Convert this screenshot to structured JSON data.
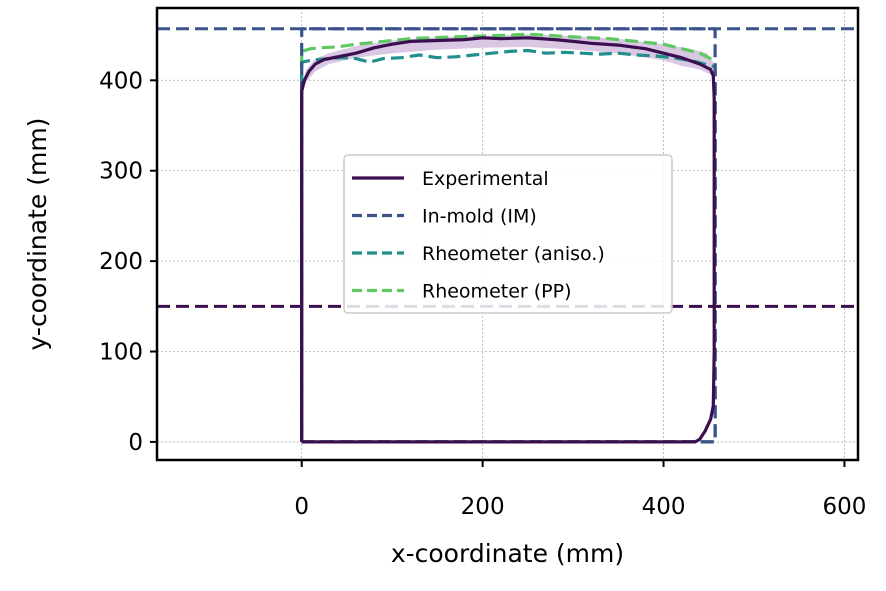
{
  "chart_data": {
    "type": "line",
    "xlabel": "x-coordinate (mm)",
    "ylabel": "y-coordinate (mm)",
    "xlim": [
      -160,
      615
    ],
    "ylim": [
      -20,
      480
    ],
    "xticks": [
      0,
      200,
      400,
      600
    ],
    "yticks": [
      0,
      100,
      200,
      300,
      400
    ],
    "xtick_labels": [
      "0",
      "200",
      "400",
      "600"
    ],
    "ytick_labels": [
      "0",
      "100",
      "200",
      "300",
      "400"
    ],
    "grid": true,
    "legend_position": "center",
    "reference_lines": [
      {
        "orientation": "horizontal",
        "y": 457,
        "color": "#3b528b",
        "style": "dashed"
      },
      {
        "orientation": "horizontal",
        "y": 150,
        "color": "#3b0f4f",
        "style": "dashed"
      }
    ],
    "band": {
      "series": "Experimental",
      "color": "#d5c1e0",
      "upper": [
        [
          0,
          395
        ],
        [
          5,
          412
        ],
        [
          15,
          424
        ],
        [
          30,
          430
        ],
        [
          60,
          438
        ],
        [
          100,
          444
        ],
        [
          150,
          448
        ],
        [
          200,
          449
        ],
        [
          250,
          451
        ],
        [
          300,
          449
        ],
        [
          350,
          446
        ],
        [
          400,
          440
        ],
        [
          430,
          435
        ],
        [
          448,
          430
        ],
        [
          455,
          420
        ]
      ],
      "lower": [
        [
          455,
          405
        ],
        [
          440,
          412
        ],
        [
          420,
          416
        ],
        [
          400,
          422
        ],
        [
          350,
          430
        ],
        [
          300,
          434
        ],
        [
          250,
          437
        ],
        [
          200,
          436
        ],
        [
          150,
          434
        ],
        [
          100,
          430
        ],
        [
          60,
          425
        ],
        [
          30,
          418
        ],
        [
          15,
          410
        ],
        [
          5,
          398
        ],
        [
          0,
          385
        ]
      ]
    },
    "series": [
      {
        "name": "Experimental",
        "color": "#3b0f4f",
        "style": "solid",
        "points": [
          [
            0,
            0
          ],
          [
            435,
            0
          ],
          [
            440,
            3
          ],
          [
            446,
            12
          ],
          [
            452,
            25
          ],
          [
            455,
            40
          ],
          [
            456,
            100
          ],
          [
            456,
            380
          ],
          [
            455,
            405
          ],
          [
            452,
            412
          ],
          [
            440,
            418
          ],
          [
            420,
            425
          ],
          [
            400,
            430
          ],
          [
            380,
            435
          ],
          [
            350,
            439
          ],
          [
            320,
            441
          ],
          [
            300,
            443
          ],
          [
            280,
            445
          ],
          [
            250,
            447
          ],
          [
            220,
            446
          ],
          [
            200,
            447
          ],
          [
            180,
            445
          ],
          [
            150,
            444
          ],
          [
            120,
            443
          ],
          [
            100,
            440
          ],
          [
            80,
            436
          ],
          [
            60,
            430
          ],
          [
            40,
            426
          ],
          [
            25,
            423
          ],
          [
            15,
            418
          ],
          [
            8,
            410
          ],
          [
            3,
            400
          ],
          [
            0,
            388
          ],
          [
            0,
            0
          ]
        ]
      },
      {
        "name": "In-mold (IM)",
        "color": "#3b528b",
        "style": "dashed",
        "points": [
          [
            0,
            0
          ],
          [
            457,
            0
          ],
          [
            457,
            457
          ],
          [
            0,
            457
          ],
          [
            0,
            0
          ]
        ]
      },
      {
        "name": "Rheometer (aniso.)",
        "color": "#21908c",
        "style": "dashed",
        "points": [
          [
            0,
            0
          ],
          [
            457,
            0
          ],
          [
            457,
            415
          ],
          [
            445,
            418
          ],
          [
            430,
            422
          ],
          [
            410,
            425
          ],
          [
            390,
            427
          ],
          [
            370,
            428
          ],
          [
            350,
            430
          ],
          [
            330,
            429
          ],
          [
            310,
            430
          ],
          [
            290,
            431
          ],
          [
            270,
            430
          ],
          [
            250,
            433
          ],
          [
            230,
            432
          ],
          [
            210,
            430
          ],
          [
            190,
            428
          ],
          [
            170,
            426
          ],
          [
            150,
            425
          ],
          [
            130,
            428
          ],
          [
            110,
            425
          ],
          [
            90,
            424
          ],
          [
            75,
            420
          ],
          [
            60,
            424
          ],
          [
            45,
            425
          ],
          [
            30,
            424
          ],
          [
            20,
            423
          ],
          [
            10,
            422
          ],
          [
            0,
            420
          ],
          [
            0,
            0
          ]
        ]
      },
      {
        "name": "Rheometer (PP)",
        "color": "#5ec962",
        "style": "dashed",
        "points": [
          [
            0,
            0
          ],
          [
            457,
            0
          ],
          [
            457,
            420
          ],
          [
            450,
            425
          ],
          [
            440,
            430
          ],
          [
            420,
            435
          ],
          [
            400,
            440
          ],
          [
            370,
            443
          ],
          [
            340,
            446
          ],
          [
            300,
            448
          ],
          [
            270,
            450
          ],
          [
            250,
            451
          ],
          [
            230,
            450
          ],
          [
            200,
            449
          ],
          [
            170,
            448
          ],
          [
            140,
            447
          ],
          [
            120,
            446
          ],
          [
            100,
            444
          ],
          [
            80,
            442
          ],
          [
            60,
            440
          ],
          [
            40,
            437
          ],
          [
            20,
            436
          ],
          [
            10,
            435
          ],
          [
            0,
            432
          ],
          [
            0,
            0
          ]
        ]
      }
    ]
  }
}
